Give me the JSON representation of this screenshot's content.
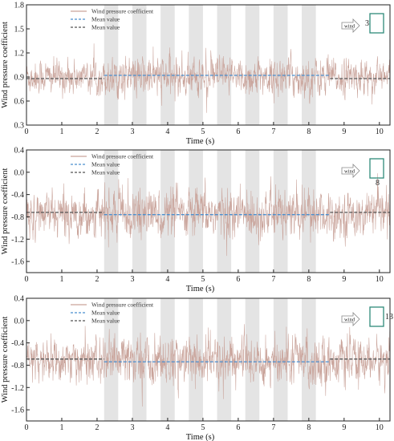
{
  "chart_data": [
    {
      "type": "line",
      "xlabel": "Time (s)",
      "ylabel": "Wind pressure coefficient",
      "xlim": [
        0,
        10.3
      ],
      "ylim": [
        0.3,
        1.8
      ],
      "xticks": [
        "0",
        "1",
        "2",
        "3",
        "4",
        "5",
        "6",
        "7",
        "8",
        "9",
        "10"
      ],
      "yticks": [
        "0.3",
        "0.6",
        "0.9",
        "1.2",
        "1.5",
        "1.8"
      ],
      "yticks_values": [
        0.3,
        0.6,
        0.9,
        1.2,
        1.5,
        1.8
      ],
      "legend": [
        "Wind pressure coefficient",
        "Mean value",
        "Mean value"
      ],
      "legend_placement": "top-left",
      "shaded_band_start": 2.2,
      "shaded_band_end": 8.6,
      "series": [
        {
          "name": "Wind pressure coefficient",
          "mean": 0.9,
          "std": 0.11
        },
        {
          "name": "Mean value",
          "x": [
            2.2,
            8.6
          ],
          "y": [
            0.92,
            0.92
          ]
        },
        {
          "name": "Mean value",
          "x": [
            0,
            2.2,
            8.6,
            10.3
          ],
          "y": [
            0.88,
            0.88,
            0.88,
            0.88
          ]
        }
      ],
      "inset": {
        "wind_label": "wind",
        "tap_label": "3"
      }
    },
    {
      "type": "line",
      "xlabel": "Time (s)",
      "ylabel": "Wind pressure coefficient",
      "xlim": [
        0,
        10.3
      ],
      "ylim": [
        -1.8,
        0.4
      ],
      "xticks": [
        "0",
        "1",
        "2",
        "3",
        "4",
        "5",
        "6",
        "7",
        "8",
        "9",
        "10"
      ],
      "yticks": [
        "0.4",
        "0.0",
        "-0.4",
        "-0.8",
        "-1.2",
        "-1.6"
      ],
      "yticks_values": [
        0.4,
        0.0,
        -0.4,
        -0.8,
        -1.2,
        -1.6
      ],
      "legend": [
        "Wind pressure coefficient",
        "Mean value",
        "Mean value"
      ],
      "legend_placement": "top-left",
      "shaded_band_start": 2.2,
      "shaded_band_end": 8.6,
      "series": [
        {
          "name": "Wind pressure coefficient",
          "mean": -0.75,
          "std": 0.2
        },
        {
          "name": "Mean value",
          "x": [
            2.2,
            8.6
          ],
          "y": [
            -0.76,
            -0.76
          ]
        },
        {
          "name": "Mean value",
          "x": [
            0,
            2.2,
            8.6,
            10.3
          ],
          "y": [
            -0.72,
            -0.72,
            -0.72,
            -0.72
          ]
        }
      ],
      "inset": {
        "wind_label": "wind",
        "tap_label": "8"
      }
    },
    {
      "type": "line",
      "xlabel": "Time (s)",
      "ylabel": "Wind pressure coefficient",
      "xlim": [
        0,
        10.3
      ],
      "ylim": [
        -1.8,
        0.4
      ],
      "xticks": [
        "0",
        "1",
        "2",
        "3",
        "4",
        "5",
        "6",
        "7",
        "8",
        "9",
        "10"
      ],
      "yticks": [
        "0.4",
        "0.0",
        "-0.4",
        "-0.8",
        "-1.2",
        "-1.6"
      ],
      "yticks_values": [
        0.4,
        0.0,
        -0.4,
        -0.8,
        -1.2,
        -1.6
      ],
      "legend": [
        "Wind pressure coefficient",
        "Mean value",
        "Mean value"
      ],
      "legend_placement": "top-left",
      "shaded_band_start": 2.2,
      "shaded_band_end": 8.6,
      "series": [
        {
          "name": "Wind pressure coefficient",
          "mean": -0.72,
          "std": 0.2
        },
        {
          "name": "Mean value",
          "x": [
            2.2,
            8.6
          ],
          "y": [
            -0.74,
            -0.74
          ]
        },
        {
          "name": "Mean value",
          "x": [
            0,
            2.2,
            8.6,
            10.3
          ],
          "y": [
            -0.69,
            -0.69,
            -0.69,
            -0.69
          ]
        }
      ],
      "inset": {
        "wind_label": "wind",
        "tap_label": "13"
      }
    }
  ],
  "colors": {
    "signal": "#c9a39a",
    "mean_inner": "#4a8fcf",
    "mean_outer": "#555555",
    "band": "#e4e4e4",
    "inset_box": "#2e8a7a"
  }
}
